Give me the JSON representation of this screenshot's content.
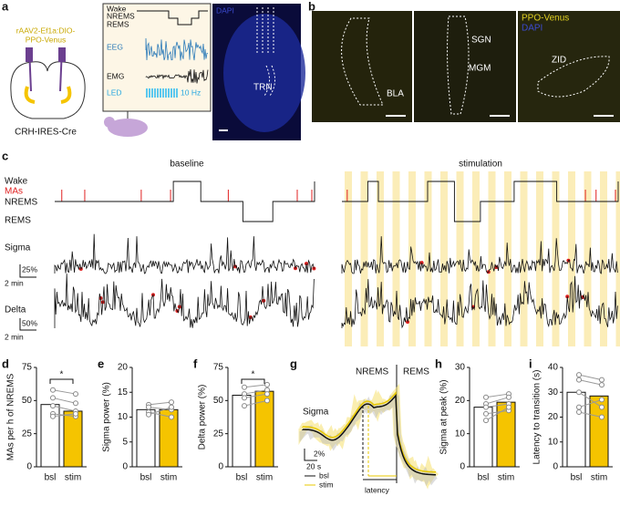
{
  "panel_letters": [
    "a",
    "b",
    "c",
    "d",
    "e",
    "f",
    "g",
    "h",
    "i"
  ],
  "a": {
    "virus": [
      "rAAV2-Ef1a:DIO-",
      "PPO-Venus"
    ],
    "mouse": "CRH-IRES-Cre",
    "states": [
      "Wake",
      "NREMS",
      "REMS"
    ],
    "eeg": "EEG",
    "emg": "EMG",
    "led": "LED",
    "freq": "10 Hz",
    "stain": "DAPI",
    "region": "TRN"
  },
  "b": {
    "regions": [
      "BLA",
      "SGN",
      "MGM",
      "ZID"
    ],
    "legend": [
      "PPO-Venus",
      "DAPI"
    ]
  },
  "c": {
    "conditions": [
      "baseline",
      "stimulation"
    ],
    "states": [
      "Wake",
      "MAs",
      "NREMS",
      "REMS"
    ],
    "sigma": "Sigma",
    "sigma_scale": "25%",
    "sigma_time": "2 min",
    "delta": "Delta",
    "delta_scale": "50%",
    "delta_time": "2 min"
  },
  "g": {
    "states": [
      "NREMS",
      "REMS"
    ],
    "trace": "Sigma",
    "y_scale": "2%",
    "x_scale": "20 s",
    "legend": [
      "bsl",
      "stim"
    ],
    "latency": "latency"
  },
  "chart_data": [
    {
      "type": "bar",
      "ylabel": "MAs per h of NREMS",
      "categories": [
        "bsl",
        "stim"
      ],
      "values": [
        47,
        42
      ],
      "colors": [
        "#ffffff",
        "#f5c400"
      ],
      "ylim": [
        0,
        75
      ],
      "yticks": [
        0,
        25,
        50,
        75
      ],
      "points": [
        [
          58,
          55
        ],
        [
          52,
          48
        ],
        [
          46,
          42
        ],
        [
          40,
          38
        ],
        [
          38,
          40
        ]
      ],
      "significance": "*"
    },
    {
      "type": "bar",
      "ylabel": "Sigma power (%)",
      "categories": [
        "bsl",
        "stim"
      ],
      "values": [
        11.5,
        11.5
      ],
      "colors": [
        "#ffffff",
        "#f5c400"
      ],
      "ylim": [
        0,
        20
      ],
      "yticks": [
        0,
        5,
        10,
        15,
        20
      ],
      "points": [
        [
          12.5,
          13
        ],
        [
          12,
          11.5
        ],
        [
          11,
          10
        ],
        [
          10.5,
          12
        ]
      ]
    },
    {
      "type": "bar",
      "ylabel": "Delta power (%)",
      "categories": [
        "bsl",
        "stim"
      ],
      "values": [
        54,
        57
      ],
      "colors": [
        "#ffffff",
        "#f5c400"
      ],
      "ylim": [
        0,
        75
      ],
      "yticks": [
        0,
        25,
        50,
        75
      ],
      "points": [
        [
          60,
          62
        ],
        [
          55,
          58
        ],
        [
          52,
          55
        ],
        [
          46,
          50
        ]
      ],
      "significance": "*"
    },
    {
      "type": "bar",
      "ylabel": "Sigma at peak (%)",
      "categories": [
        "bsl",
        "stim"
      ],
      "values": [
        18,
        19.5
      ],
      "colors": [
        "#ffffff",
        "#f5c400"
      ],
      "ylim": [
        0,
        30
      ],
      "yticks": [
        0,
        10,
        20,
        30
      ],
      "points": [
        [
          21,
          22
        ],
        [
          19,
          21
        ],
        [
          18,
          19
        ],
        [
          16,
          17
        ],
        [
          14,
          18
        ]
      ]
    },
    {
      "type": "bar",
      "ylabel": "Latency to transition (s)",
      "categories": [
        "bsl",
        "stim"
      ],
      "values": [
        30,
        28.5
      ],
      "colors": [
        "#ffffff",
        "#f5c400"
      ],
      "ylim": [
        0,
        40
      ],
      "yticks": [
        0,
        10,
        20,
        30,
        40
      ],
      "points": [
        [
          37,
          35
        ],
        [
          35,
          33
        ],
        [
          30,
          24
        ],
        [
          24,
          27
        ],
        [
          22,
          20
        ]
      ]
    }
  ]
}
